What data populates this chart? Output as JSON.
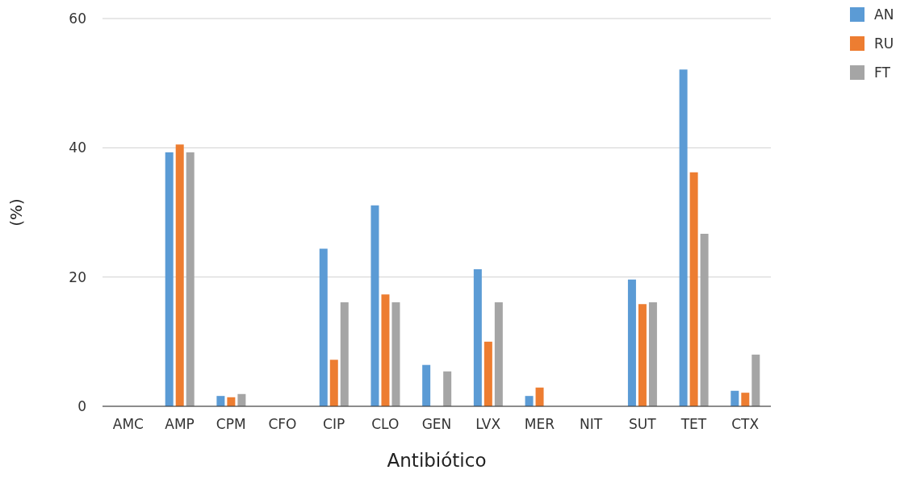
{
  "chart_data": {
    "type": "bar",
    "xlabel": "Antibiótico",
    "ylabel": "(%)",
    "categories": [
      "AMC",
      "AMP",
      "CPM",
      "CFO",
      "CIP",
      "CLO",
      "GEN",
      "LVX",
      "MER",
      "NIT",
      "SUT",
      "TET",
      "CTX"
    ],
    "series": [
      {
        "name": "AN",
        "color": "#5b9bd5",
        "values": [
          0,
          39.3,
          1.6,
          0,
          24.4,
          31.1,
          6.4,
          21.2,
          1.6,
          0,
          19.6,
          52.1,
          2.4
        ]
      },
      {
        "name": "RU",
        "color": "#ed7d31",
        "values": [
          0,
          40.5,
          1.4,
          0,
          7.2,
          17.3,
          0,
          10.0,
          2.9,
          0,
          15.8,
          36.2,
          2.1
        ]
      },
      {
        "name": "FT",
        "color": "#a5a5a5",
        "values": [
          0,
          39.3,
          1.9,
          0,
          16.1,
          16.1,
          5.4,
          16.1,
          0,
          0,
          16.1,
          26.7,
          8.0
        ]
      }
    ],
    "ylim": [
      0,
      60
    ],
    "yticks": [
      0,
      20,
      40,
      60
    ],
    "grid": "y",
    "legend": "top right"
  }
}
